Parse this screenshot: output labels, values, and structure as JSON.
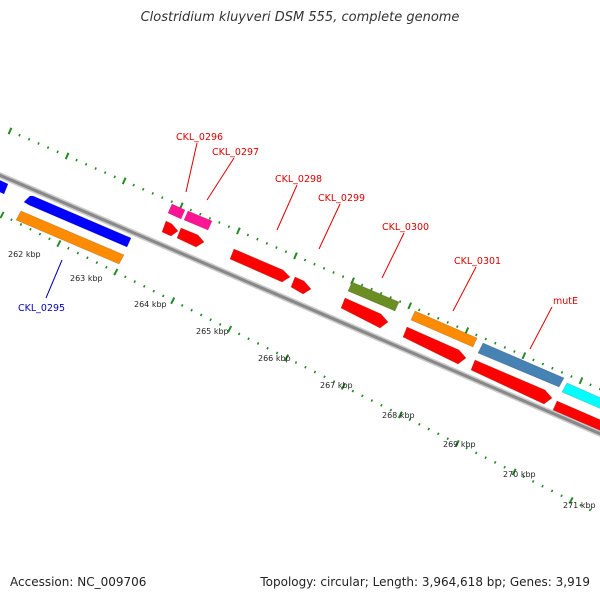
{
  "header": {
    "title": "Clostridium kluyveri DSM 555, complete genome"
  },
  "footer": {
    "accession": "Accession: NC_009706",
    "summary": "Topology: circular; Length: 3,964,618 bp; Genes: 3,919"
  },
  "colors": {
    "backbone": "#888888",
    "tick": "#228b22",
    "label_red": "#dd0000",
    "label_blue": "#0000bb",
    "feature_blue": "#0000ff",
    "feature_orange": "#ff8c00",
    "feature_pink": "#ff1493",
    "feature_red": "#ff0000",
    "feature_olive": "#6b8e23",
    "feature_steelblue": "#4682b4",
    "feature_cyan": "#00ffff"
  },
  "scale_labels": [
    "262 kbp",
    "263 kbp",
    "264 kbp",
    "265 kbp",
    "266 kbp",
    "267 kbp",
    "268 kbp",
    "269 kbp",
    "270 kbp",
    "271 kbp"
  ],
  "gene_labels": [
    {
      "id": "CKL_0295",
      "color": "blue"
    },
    {
      "id": "CKL_0296",
      "color": "red"
    },
    {
      "id": "CKL_0297",
      "color": "red"
    },
    {
      "id": "CKL_0298",
      "color": "red"
    },
    {
      "id": "CKL_0299",
      "color": "red"
    },
    {
      "id": "CKL_0300",
      "color": "red"
    },
    {
      "id": "CKL_0301",
      "color": "red"
    },
    {
      "id": "mutE",
      "color": "red"
    }
  ],
  "features": [
    {
      "name": "feature-blue-edge",
      "color": "feature_blue"
    },
    {
      "name": "feature-blue-ckl0295",
      "color": "feature_blue"
    },
    {
      "name": "feature-orange-ckl0295",
      "color": "feature_orange"
    },
    {
      "name": "feature-pink-ckl0296",
      "color": "feature_pink"
    },
    {
      "name": "feature-pink-ckl0297",
      "color": "feature_pink"
    },
    {
      "name": "feature-red-ckl0296",
      "color": "feature_red"
    },
    {
      "name": "feature-red-ckl0297",
      "color": "feature_red"
    },
    {
      "name": "feature-red-ckl0298",
      "color": "feature_red"
    },
    {
      "name": "feature-red-ckl0299",
      "color": "feature_red"
    },
    {
      "name": "feature-olive-ckl0300",
      "color": "feature_olive"
    },
    {
      "name": "feature-red-ckl0300",
      "color": "feature_red"
    },
    {
      "name": "feature-orange-ckl0301",
      "color": "feature_orange"
    },
    {
      "name": "feature-red-ckl0301",
      "color": "feature_red"
    },
    {
      "name": "feature-steelblue-mute",
      "color": "feature_steelblue"
    },
    {
      "name": "feature-red-mute",
      "color": "feature_red"
    },
    {
      "name": "feature-cyan-next",
      "color": "feature_cyan"
    },
    {
      "name": "feature-red-next",
      "color": "feature_red"
    }
  ]
}
